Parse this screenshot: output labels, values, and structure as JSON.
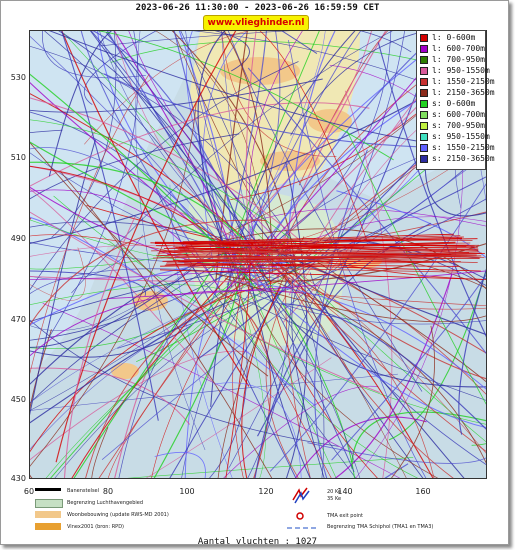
{
  "header": {
    "time_range": "2023-06-26 11:30:00 - 2023-06-26 16:59:59 CET",
    "site_badge": "www.vlieghinder.nl"
  },
  "axes": {
    "y_ticks": [
      "530",
      "510",
      "490",
      "470",
      "450",
      "430"
    ],
    "x_ticks": [
      "60",
      "80",
      "100",
      "120",
      "140",
      "160"
    ]
  },
  "legend": {
    "items": [
      {
        "label": "l: 0-600m",
        "color": "#d40000"
      },
      {
        "label": "l: 600-700m",
        "color": "#a000c8"
      },
      {
        "label": "l: 700-950m",
        "color": "#2e7d00"
      },
      {
        "label": "l: 950-1550m",
        "color": "#d85a9a"
      },
      {
        "label": "l: 1550-2150m",
        "color": "#c83232"
      },
      {
        "label": "l: 2150-3650m",
        "color": "#8b2a1a"
      },
      {
        "label": "s: 0-600m",
        "color": "#20d020"
      },
      {
        "label": "s: 600-700m",
        "color": "#80e060"
      },
      {
        "label": "s: 700-950m",
        "color": "#c0f040"
      },
      {
        "label": "s: 950-1550m",
        "color": "#40e0c0"
      },
      {
        "label": "s: 1550-2150m",
        "color": "#6060ff"
      },
      {
        "label": "s: 2150-3650m",
        "color": "#2c2ca0"
      }
    ]
  },
  "footer_legend": {
    "runway": "Banenstelsel",
    "airport_area": "Begrenzing Luchthavengebied",
    "housing": "Woonbebouwing (update RWS-MD 2001)",
    "vinex": "Vinex2001 (bron: RPD)",
    "kv20": "20 Ke",
    "kv35": "35 Ke",
    "tma_exit": "TMA exit point",
    "tma_boundary": "Begrenzing TMA Schiphol  (TMA1 en TMA3)"
  },
  "summary": {
    "flight_count": "Aantal vluchten : 1027"
  }
}
